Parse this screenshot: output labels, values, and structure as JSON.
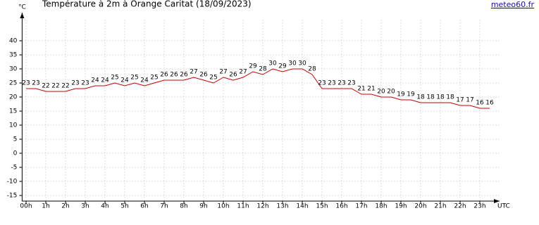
{
  "chart_data": {
    "type": "line",
    "title": "Température à 2m à Orange Caritat (18/09/2023)",
    "source": "meteo60.fr",
    "y_label": "°C",
    "x_label": "UTC",
    "x": [
      0,
      0.5,
      1,
      1.5,
      2,
      2.5,
      3,
      3.5,
      4,
      4.5,
      5,
      5.5,
      6,
      6.5,
      7,
      7.5,
      8,
      8.5,
      9,
      9.5,
      10,
      10.5,
      11,
      11.5,
      12,
      12.5,
      13,
      13.5,
      14,
      14.5,
      15,
      15.5,
      16,
      16.5,
      17,
      17.5,
      18,
      18.5,
      19,
      19.5,
      20,
      20.5,
      21,
      21.5,
      22,
      22.5,
      23,
      23.5
    ],
    "series": [
      {
        "name": "Température",
        "color": "#cc0000",
        "values": [
          23,
          23,
          22,
          22,
          22,
          23,
          23,
          24,
          24,
          25,
          24,
          25,
          24,
          25,
          26,
          26,
          26,
          27,
          26,
          25,
          27,
          26,
          27,
          29,
          28,
          30,
          29,
          30,
          30,
          28,
          23,
          23,
          23,
          23,
          21,
          21,
          20,
          20,
          19,
          19,
          18,
          18,
          18,
          18,
          17,
          17,
          16,
          16
        ]
      }
    ],
    "xlim": [
      -0.2,
      24
    ],
    "ylim": [
      -17,
      50
    ],
    "xticks": [
      {
        "value": 0,
        "label": "00h"
      },
      {
        "value": 1,
        "label": "1h"
      },
      {
        "value": 2,
        "label": "2h"
      },
      {
        "value": 3,
        "label": "3h"
      },
      {
        "value": 4,
        "label": "4h"
      },
      {
        "value": 5,
        "label": "5h"
      },
      {
        "value": 6,
        "label": "6h"
      },
      {
        "value": 7,
        "label": "7h"
      },
      {
        "value": 8,
        "label": "8h"
      },
      {
        "value": 9,
        "label": "9h"
      },
      {
        "value": 10,
        "label": "10h"
      },
      {
        "value": 11,
        "label": "11h"
      },
      {
        "value": 12,
        "label": "12h"
      },
      {
        "value": 13,
        "label": "13h"
      },
      {
        "value": 14,
        "label": "14h"
      },
      {
        "value": 15,
        "label": "15h"
      },
      {
        "value": 16,
        "label": "16h"
      },
      {
        "value": 17,
        "label": "17h"
      },
      {
        "value": 18,
        "label": "18h"
      },
      {
        "value": 19,
        "label": "19h"
      },
      {
        "value": 20,
        "label": "20h"
      },
      {
        "value": 21,
        "label": "21h"
      },
      {
        "value": 22,
        "label": "22h"
      },
      {
        "value": 23,
        "label": "23h"
      }
    ],
    "yticks": [
      -15,
      -10,
      -5,
      0,
      5,
      10,
      15,
      20,
      25,
      30,
      35,
      40
    ],
    "grid": true
  }
}
